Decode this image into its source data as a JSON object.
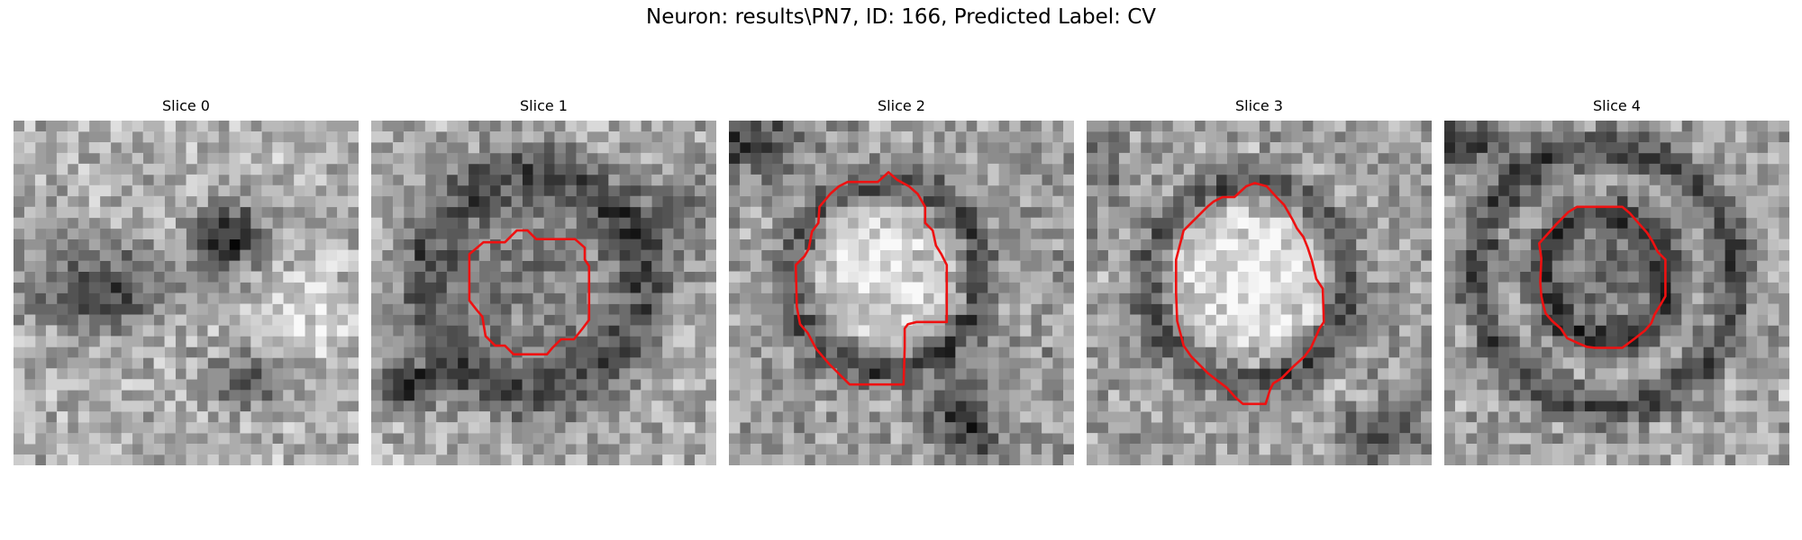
{
  "figure": {
    "title": "Neuron: results\\PN7, ID: 166, Predicted Label: CV"
  },
  "slices": [
    {
      "title": "Slice 0"
    },
    {
      "title": "Slice 1"
    },
    {
      "title": "Slice 2"
    },
    {
      "title": "Slice 3"
    },
    {
      "title": "Slice 4"
    }
  ],
  "colors": {
    "contour": "#ee1111",
    "background": "#ffffff"
  }
}
